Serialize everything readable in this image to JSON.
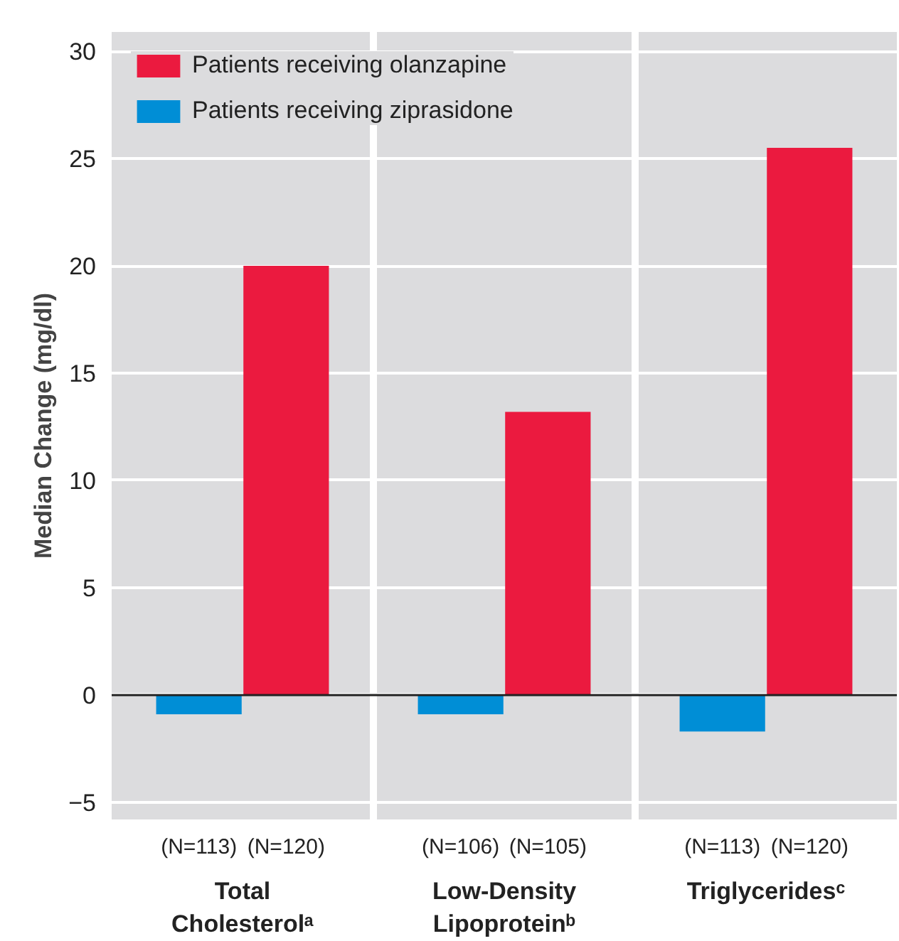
{
  "chart_data": {
    "type": "bar",
    "ylabel": "Median Change (mg/dl)",
    "categories": [
      "Total\nCholesterolᵃ",
      "Low-Density\nLipoproteinᵇ",
      "Triglyceridesᶜ"
    ],
    "series": [
      {
        "name": "Patients receiving olanzapine",
        "color": "#eb1a3f",
        "values": [
          20.0,
          13.2,
          25.5
        ]
      },
      {
        "name": "Patients receiving ziprasidone",
        "color": "#008ed6",
        "values": [
          -0.9,
          -0.9,
          -1.7
        ]
      }
    ],
    "annotations": [
      "(N=113)",
      "(N=120)",
      "(N=106)",
      "(N=105)",
      "(N=113)",
      "(N=120)"
    ],
    "ylim": [
      -5.8,
      30.9
    ],
    "yticks": [
      {
        "value": -5,
        "label": "−5"
      },
      0,
      5,
      10,
      15,
      20,
      25,
      30
    ],
    "ref_lines": [
      {
        "axis": "y",
        "value": 0,
        "color": "#222222"
      }
    ],
    "grid": "y",
    "legend": "top left"
  }
}
